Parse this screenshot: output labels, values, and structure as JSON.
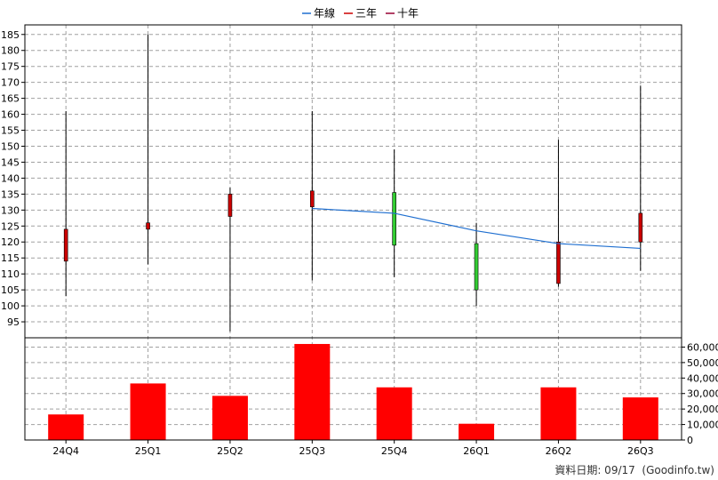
{
  "legend": {
    "items": [
      {
        "label": "年線",
        "color": "#1f6fd0"
      },
      {
        "label": "三年",
        "color": "#cc0000"
      },
      {
        "label": "十年",
        "color": "#990033"
      }
    ]
  },
  "footer": {
    "text": "資料日期: 09/17  (Goodinfo.tw)"
  },
  "chart_data": [
    {
      "type": "candlestick",
      "categories": [
        "24Q4",
        "25Q1",
        "25Q2",
        "25Q3",
        "25Q4",
        "26Q1",
        "26Q2",
        "26Q3"
      ],
      "ylim": [
        90,
        188
      ],
      "yticks": [
        95,
        100,
        105,
        110,
        115,
        120,
        125,
        130,
        135,
        140,
        145,
        150,
        155,
        160,
        165,
        170,
        175,
        180,
        185
      ],
      "grid": true,
      "candles": [
        {
          "open": 114,
          "close": 124,
          "high": 161,
          "low": 103,
          "color": "#cc0000"
        },
        {
          "open": 124,
          "close": 126,
          "high": 185,
          "low": 113,
          "color": "#cc0000"
        },
        {
          "open": 128,
          "close": 135,
          "high": 137,
          "low": 92,
          "color": "#cc0000"
        },
        {
          "open": 131,
          "close": 136,
          "high": 161,
          "low": 108,
          "color": "#cc0000"
        },
        {
          "open": 135.5,
          "close": 119,
          "high": 149,
          "low": 109,
          "color": "#33cc33"
        },
        {
          "open": 119.5,
          "close": 105,
          "high": 126,
          "low": 100,
          "color": "#33cc33"
        },
        {
          "open": 107,
          "close": 120,
          "high": 152,
          "low": 106,
          "color": "#cc0000"
        },
        {
          "open": 120,
          "close": 129,
          "high": 169,
          "low": 111,
          "color": "#cc0000"
        }
      ],
      "line": {
        "name": "年線",
        "color": "#1f6fd0",
        "points": [
          {
            "category": "25Q3",
            "value": 130.5
          },
          {
            "category": "25Q4",
            "value": 129
          },
          {
            "category": "26Q1",
            "value": 123.5
          },
          {
            "category": "26Q2",
            "value": 119.5
          },
          {
            "category": "26Q3",
            "value": 118
          }
        ]
      }
    },
    {
      "type": "bar",
      "categories": [
        "24Q4",
        "25Q1",
        "25Q2",
        "25Q3",
        "25Q4",
        "26Q1",
        "26Q2",
        "26Q3"
      ],
      "values": [
        16500,
        36500,
        28500,
        62000,
        34000,
        10500,
        34000,
        27500
      ],
      "ylim": [
        0,
        66000
      ],
      "yticks": [
        0,
        10000,
        20000,
        30000,
        40000,
        50000,
        60000
      ],
      "ytick_labels": [
        "0",
        "10,000",
        "20,000",
        "30,000",
        "40,000",
        "50,000",
        "60,000"
      ],
      "color": "#ff0000",
      "grid": true
    }
  ]
}
